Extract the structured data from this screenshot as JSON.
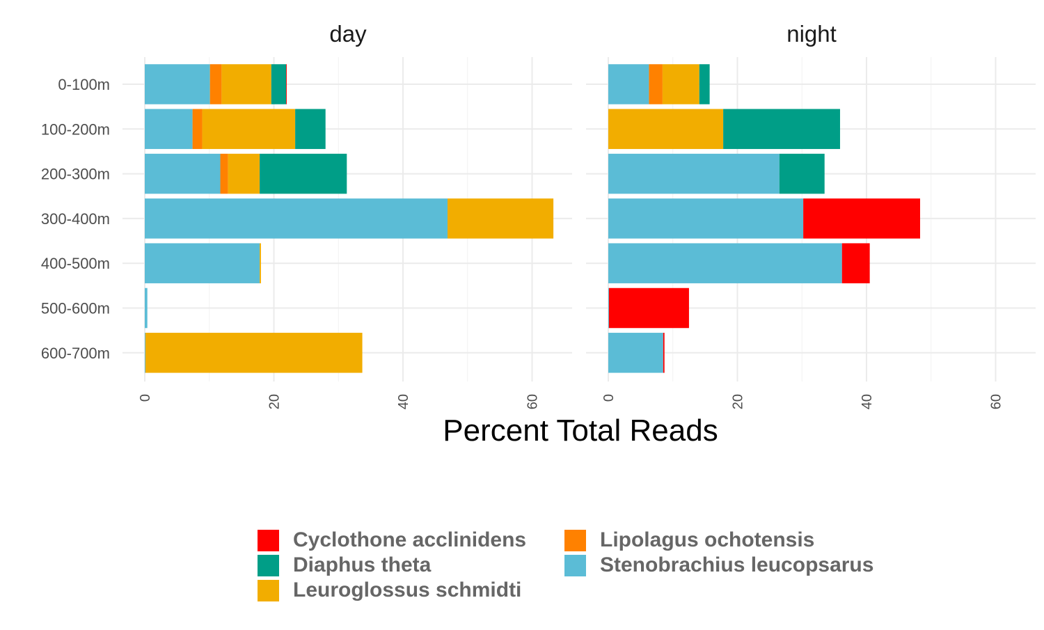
{
  "chart_data": {
    "type": "bar",
    "orientation": "horizontal",
    "stacked": true,
    "xlabel": "Percent Total Reads",
    "ylabel": "",
    "xlim": [
      0,
      66
    ],
    "x_ticks": [
      0,
      20,
      40,
      60
    ],
    "grid": true,
    "legend_position": "bottom",
    "categories": [
      "0-100m",
      "100-200m",
      "200-300m",
      "300-400m",
      "400-500m",
      "500-600m",
      "600-700m"
    ],
    "series_names": [
      "Cyclothone acclinidens",
      "Diaphus theta",
      "Leuroglossus schmidti",
      "Lipolagus ochotensis",
      "Stenobrachius leucopsarus"
    ],
    "colors": {
      "Cyclothone acclinidens": "#FF0000",
      "Diaphus theta": "#009E87",
      "Leuroglossus schmidti": "#F2AD00",
      "Lipolagus ochotensis": "#FF8100",
      "Stenobrachius leucopsarus": "#5BBCD6"
    },
    "stack_order": [
      "Stenobrachius leucopsarus",
      "Lipolagus ochotensis",
      "Leuroglossus schmidti",
      "Diaphus theta",
      "Cyclothone acclinidens"
    ],
    "panels": [
      {
        "title": "day",
        "series": [
          {
            "name": "Stenobrachius leucopsarus",
            "values": [
              10.1,
              7.4,
              11.7,
              46.9,
              17.8,
              0.4,
              0.1
            ]
          },
          {
            "name": "Lipolagus ochotensis",
            "values": [
              1.8,
              1.5,
              1.2,
              0,
              0,
              0,
              0
            ]
          },
          {
            "name": "Leuroglossus schmidti",
            "values": [
              7.7,
              14.4,
              4.9,
              16.4,
              0.2,
              0,
              33.6
            ]
          },
          {
            "name": "Diaphus theta",
            "values": [
              2.3,
              4.7,
              13.5,
              0,
              0,
              0,
              0
            ]
          },
          {
            "name": "Cyclothone acclinidens",
            "values": [
              0.1,
              0,
              0,
              0,
              0,
              0,
              0
            ]
          }
        ]
      },
      {
        "title": "night",
        "series": [
          {
            "name": "Stenobrachius leucopsarus",
            "values": [
              6.3,
              0,
              26.5,
              30.2,
              36.2,
              0.1,
              8.5
            ]
          },
          {
            "name": "Lipolagus ochotensis",
            "values": [
              2.1,
              0,
              0,
              0,
              0,
              0,
              0
            ]
          },
          {
            "name": "Leuroglossus schmidti",
            "values": [
              5.7,
              17.8,
              0,
              0,
              0,
              0,
              0
            ]
          },
          {
            "name": "Diaphus theta",
            "values": [
              1.6,
              18.1,
              7.0,
              0,
              0,
              0,
              0
            ]
          },
          {
            "name": "Cyclothone acclinidens",
            "values": [
              0,
              0,
              0,
              18.1,
              4.3,
              12.4,
              0.2
            ]
          }
        ]
      }
    ]
  },
  "legend": {
    "items": [
      {
        "label": "Cyclothone acclinidens",
        "color": "#FF0000"
      },
      {
        "label": "Diaphus theta",
        "color": "#009E87"
      },
      {
        "label": "Leuroglossus schmidti",
        "color": "#F2AD00"
      },
      {
        "label": "Lipolagus ochotensis",
        "color": "#FF8100"
      },
      {
        "label": "Stenobrachius leucopsarus",
        "color": "#5BBCD6"
      }
    ]
  }
}
